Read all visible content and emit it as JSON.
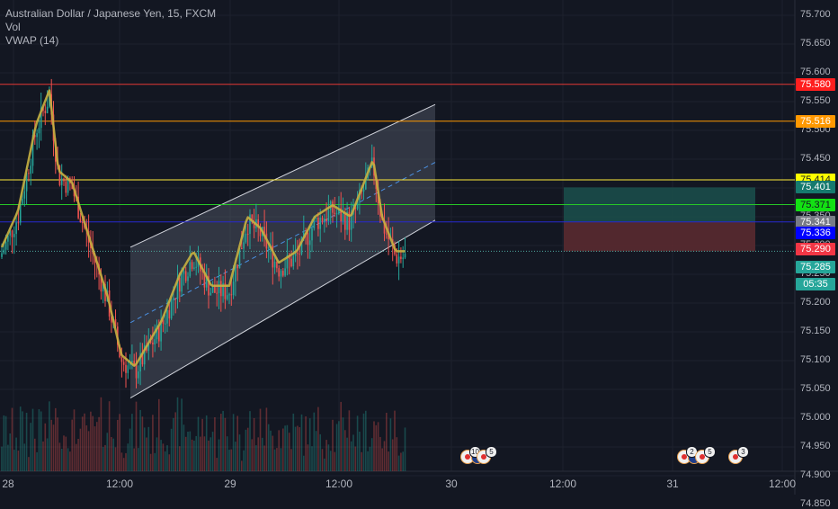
{
  "symbol": {
    "title": "Australian Dollar / Japanese Yen, 15, FXCM",
    "indicator_vol": "Vol",
    "indicator_vwap": "VWAP (14)"
  },
  "colors": {
    "background": "#131722",
    "up": "#26a69a",
    "down": "#ef5350",
    "vwap": "#c8b040",
    "channel": "#d1d4dc"
  },
  "y_axis": {
    "ticks": [
      "75.700",
      "75.650",
      "75.600",
      "75.550",
      "75.500",
      "75.450",
      "75.400",
      "75.350",
      "75.300",
      "75.250",
      "75.200",
      "75.150",
      "75.100",
      "75.050",
      "75.000",
      "74.950",
      "74.900",
      "74.850"
    ],
    "range": [
      74.845,
      75.735
    ]
  },
  "x_axis": {
    "ticks": [
      "28",
      "12:00",
      "29",
      "12:00",
      "30",
      "12:00",
      "31",
      "12:00"
    ]
  },
  "horizontal_levels": [
    {
      "price": 75.58,
      "color": "#e53935"
    },
    {
      "price": 75.516,
      "color": "#ff9800"
    },
    {
      "price": 75.414,
      "color": "#ffeb3b"
    },
    {
      "price": 75.371,
      "color": "#26c826"
    },
    {
      "price": 75.341,
      "color": "#2828d0"
    },
    {
      "price": 75.29,
      "color": "#4fa8a0",
      "dotted": true
    }
  ],
  "price_labels": [
    {
      "text": "75.580",
      "bg": "#ff1f1f",
      "fg": "#ffffff",
      "price": 75.58
    },
    {
      "text": "75.516",
      "bg": "#ff9800",
      "fg": "#ffffff",
      "price": 75.516
    },
    {
      "text": "75.414",
      "bg": "#ffff00",
      "fg": "#131722",
      "price": 75.414
    },
    {
      "text": "75.401",
      "bg": "#167a6e",
      "fg": "#ffffff",
      "price": 75.401
    },
    {
      "text": "75.371",
      "bg": "#13e013",
      "fg": "#131722",
      "price": 75.371
    },
    {
      "text": "75.341",
      "bg": "#787b86",
      "fg": "#ffffff",
      "price": 75.341
    },
    {
      "text": "75.336",
      "bg": "#0000ff",
      "fg": "#ffffff",
      "price": 75.322
    },
    {
      "text": "75.290",
      "bg": "#f23645",
      "fg": "#ffffff",
      "price": 75.293
    },
    {
      "text": "75.285",
      "bg": "#26a69a",
      "fg": "#ffffff",
      "price": 75.263
    },
    {
      "text": "05:35",
      "bg": "#26a69a",
      "fg": "#ffffff",
      "price": 75.233
    }
  ],
  "position_tool": {
    "entry": 75.341,
    "target": 75.401,
    "stop": 75.29,
    "target_color": "#1b4d4a",
    "stop_color": "#5a2a30"
  },
  "events": [
    {
      "count": "10",
      "flag": true
    },
    {
      "count": "5",
      "flag": false
    },
    {
      "count": "2",
      "flag": true
    },
    {
      "count": "5",
      "flag": false
    },
    {
      "count": "3",
      "flag": false
    }
  ]
}
